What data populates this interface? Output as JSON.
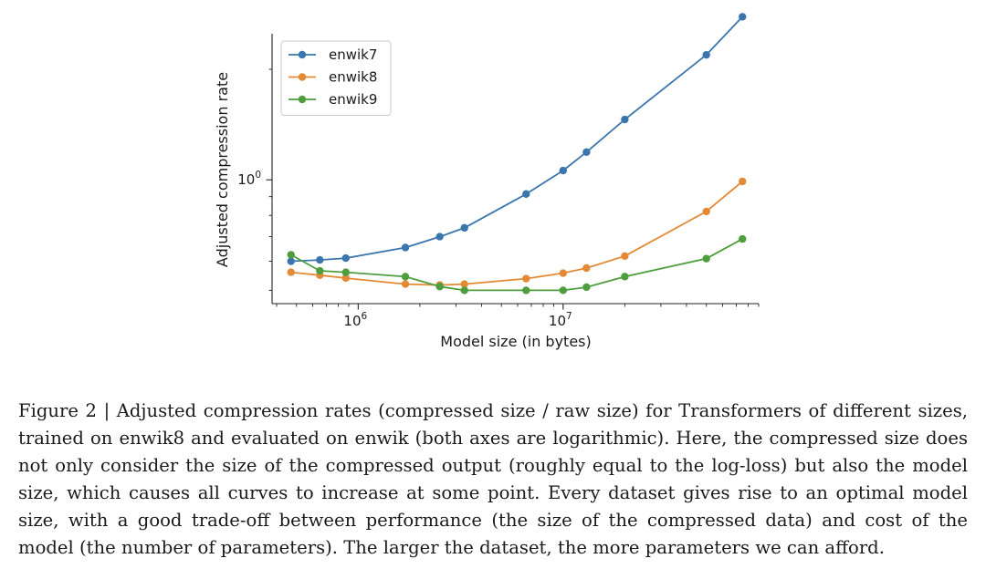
{
  "chart_data": {
    "type": "line",
    "xlabel": "Model size (in bytes)",
    "ylabel": "Adjusted compression rate",
    "xscale": "log",
    "yscale": "log",
    "xlim": [
      380000,
      90000000
    ],
    "ylim": [
      0.46,
      2.5
    ],
    "xticks": [
      {
        "value": 1000000,
        "base": "10",
        "exp": "6"
      },
      {
        "value": 10000000,
        "base": "10",
        "exp": "7"
      }
    ],
    "yticks": [
      {
        "value": 1.0,
        "base": "10",
        "exp": "0"
      }
    ],
    "grid": false,
    "legend_position": "upper left",
    "series": [
      {
        "name": "enwik7",
        "color": "#3a76ad",
        "points": [
          [
            470000,
            0.6
          ],
          [
            650000,
            0.605
          ],
          [
            870000,
            0.612
          ],
          [
            1700000,
            0.654
          ],
          [
            2500000,
            0.7
          ],
          [
            3300000,
            0.74
          ],
          [
            6600000,
            0.915
          ],
          [
            10000000,
            1.06
          ],
          [
            13000000,
            1.19
          ],
          [
            20000000,
            1.46
          ],
          [
            50000000,
            2.19
          ],
          [
            75000000,
            2.78
          ]
        ]
      },
      {
        "name": "enwik8",
        "color": "#e48a35",
        "points": [
          [
            470000,
            0.56
          ],
          [
            650000,
            0.55
          ],
          [
            870000,
            0.54
          ],
          [
            1700000,
            0.52
          ],
          [
            2500000,
            0.517
          ],
          [
            3300000,
            0.52
          ],
          [
            6600000,
            0.538
          ],
          [
            10000000,
            0.557
          ],
          [
            13000000,
            0.575
          ],
          [
            20000000,
            0.62
          ],
          [
            50000000,
            0.82
          ],
          [
            75000000,
            0.99
          ]
        ]
      },
      {
        "name": "enwik9",
        "color": "#4e9e3e",
        "points": [
          [
            470000,
            0.625
          ],
          [
            650000,
            0.565
          ],
          [
            870000,
            0.56
          ],
          [
            1700000,
            0.545
          ],
          [
            2500000,
            0.512
          ],
          [
            3300000,
            0.5
          ],
          [
            6600000,
            0.5
          ],
          [
            10000000,
            0.5
          ],
          [
            13000000,
            0.51
          ],
          [
            20000000,
            0.545
          ],
          [
            50000000,
            0.61
          ],
          [
            75000000,
            0.69
          ]
        ]
      }
    ]
  },
  "caption": "Figure 2 | Adjusted compression rates (compressed size / raw size) for Transformers of different sizes, trained on enwik8 and evaluated on enwik (both axes are logarithmic). Here, the compressed size does not only consider the size of the compressed output (roughly equal to the log-loss) but also the model size, which causes all curves to increase at some point. Every dataset gives rise to an optimal model size, with a good trade-off between performance (the size of the compressed data) and cost of the model (the number of parameters). The larger the dataset, the more parameters we can afford."
}
